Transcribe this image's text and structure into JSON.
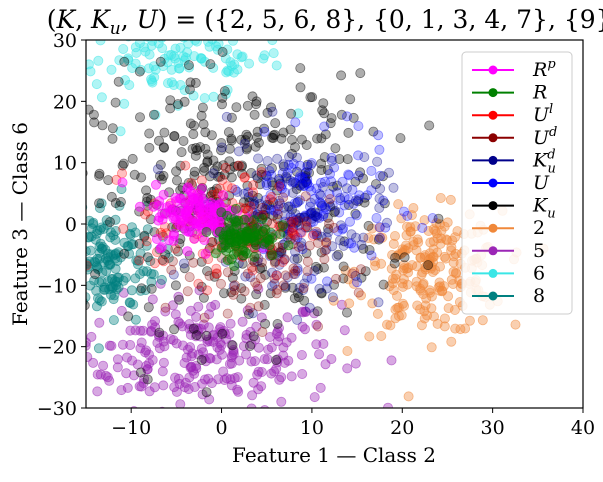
{
  "chart_data": {
    "type": "scatter",
    "title": "(K, K_u, U) = ({2, 5, 6, 8}, {0, 1, 3, 4, 7}, {9})",
    "xlabel": "Feature 1 — Class 2",
    "ylabel": "Feature 3 — Class 6",
    "xlim": [
      -15,
      40
    ],
    "ylim": [
      -30,
      30
    ],
    "xticks": [
      "−10",
      "0",
      "10",
      "20",
      "30",
      "40"
    ],
    "xtick_values": [
      -10,
      0,
      10,
      20,
      30,
      40
    ],
    "yticks": [
      "−30",
      "−20",
      "−10",
      "0",
      "10",
      "20",
      "30"
    ],
    "ytick_values": [
      -30,
      -20,
      -10,
      0,
      10,
      20,
      30
    ],
    "grid": false,
    "legend_position": "upper-right",
    "series": [
      {
        "name": "R^p",
        "color": "#ff00ff",
        "center": [
          -2.5,
          1.5
        ],
        "spread": [
          2.5,
          2.5
        ],
        "count": 140,
        "alpha": 0.45
      },
      {
        "name": "R",
        "color": "#008000",
        "center": [
          2.5,
          -2.0
        ],
        "spread": [
          1.8,
          1.8
        ],
        "count": 90,
        "alpha": 0.45
      },
      {
        "name": "U^l",
        "color": "#ff0000",
        "center": [
          0.0,
          0.0
        ],
        "spread": [
          4.5,
          4.5
        ],
        "count": 120,
        "alpha": 0.25
      },
      {
        "name": "U^d",
        "color": "#8b0000",
        "center": [
          4.0,
          -6.0
        ],
        "spread": [
          4.0,
          5.0
        ],
        "count": 90,
        "alpha": 0.25
      },
      {
        "name": "K_u^d",
        "color": "#00008b",
        "center": [
          8.0,
          0.0
        ],
        "spread": [
          5.0,
          7.0
        ],
        "count": 120,
        "alpha": 0.25
      },
      {
        "name": "U",
        "color": "#0000ff",
        "center": [
          10.0,
          3.0
        ],
        "spread": [
          4.5,
          5.0
        ],
        "count": 150,
        "alpha": 0.25
      },
      {
        "name": "K_u",
        "color": "#000000",
        "center": [
          2.0,
          4.0
        ],
        "spread": [
          8.0,
          10.0
        ],
        "count": 420,
        "alpha": 0.32
      },
      {
        "name": "2",
        "color": "#f0883a",
        "center": [
          23.0,
          -8.0
        ],
        "spread": [
          4.0,
          5.0
        ],
        "count": 220,
        "alpha": 0.4
      },
      {
        "name": "5",
        "color": "#9b26b6",
        "center": [
          -2.0,
          -21.0
        ],
        "spread": [
          7.5,
          4.5
        ],
        "count": 260,
        "alpha": 0.4
      },
      {
        "name": "6",
        "color": "#3ae6e6",
        "center": [
          -5.0,
          27.0
        ],
        "spread": [
          6.0,
          3.5
        ],
        "count": 130,
        "alpha": 0.4
      },
      {
        "name": "8",
        "color": "#008080",
        "center": [
          -13.0,
          -6.0
        ],
        "spread": [
          3.0,
          5.0
        ],
        "count": 170,
        "alpha": 0.4
      }
    ]
  }
}
